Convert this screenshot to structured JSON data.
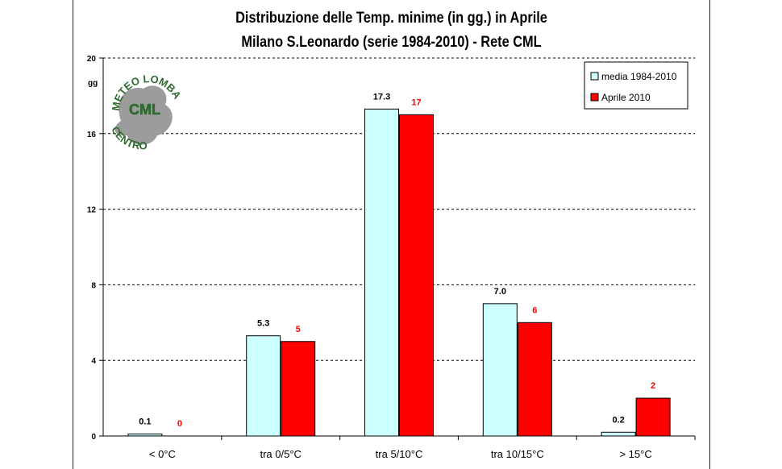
{
  "chart_data": {
    "type": "bar",
    "title": "Distribuzione delle Temp. minime (in gg.) in Aprile",
    "subtitle": "Milano S.Leonardo (serie 1984-2010) - Rete CML",
    "ylabel": "gg",
    "ylim": [
      0,
      20
    ],
    "yticks": [
      0,
      4,
      8,
      12,
      16,
      20
    ],
    "grid": true,
    "legend_position": "top-right",
    "categories": [
      "< 0°C",
      "tra 0/5°C",
      "tra 5/10°C",
      "tra 10/15°C",
      "> 15°C"
    ],
    "series": [
      {
        "name": "media 1984-2010",
        "values": [
          0.1,
          5.3,
          17.3,
          7.0,
          0.2
        ],
        "labels": [
          "0.1",
          "5.3",
          "17.3",
          "7.0",
          "0.2"
        ],
        "color": "#ccffff",
        "label_color": "#000000"
      },
      {
        "name": "Aprile 2010",
        "values": [
          0,
          5,
          17,
          6,
          2
        ],
        "labels": [
          "0",
          "5",
          "17",
          "6",
          "2"
        ],
        "color": "#ff0000",
        "label_color": "#ff0000"
      }
    ]
  },
  "logo": {
    "text_arc": "CENTRO METEO LOMBARDO",
    "center_text": "CML",
    "color": "#2f6b2f"
  }
}
